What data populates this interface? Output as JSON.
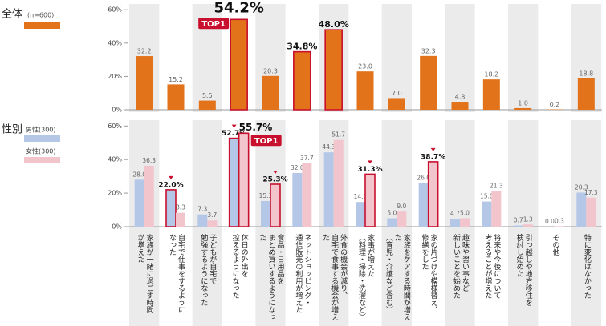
{
  "chart_data": [
    {
      "type": "bar",
      "title": "全体",
      "subtitle": "(n=600)",
      "series": [
        {
          "color": "#e2731b",
          "values": [
            32.2,
            15.2,
            5.5,
            54.2,
            20.3,
            34.8,
            48.0,
            23.0,
            7.0,
            32.3,
            4.8,
            18.2,
            1.0,
            0.2,
            18.8
          ],
          "value_labels": [
            "32.2",
            "15.2",
            "5.5",
            "54.2%",
            "20.3",
            "34.8%",
            "48.0%",
            "23.0",
            "7.0",
            "32.3",
            "4.8",
            "18.2",
            "1.0",
            "0.2",
            "18.8"
          ],
          "highlight": [
            3,
            5,
            6
          ],
          "top": 3,
          "top_label": "TOP1"
        }
      ],
      "ylim": [
        0,
        63
      ],
      "yticks": [
        {
          "value": 0,
          "label": "0%"
        },
        {
          "value": 20,
          "label": "20%"
        },
        {
          "value": 40,
          "label": "40%"
        },
        {
          "value": 60,
          "label": "60%"
        }
      ]
    },
    {
      "type": "bar",
      "title": "性別",
      "categories": [
        "家族が一緒に過ごす時間\nが増えた",
        "自宅で仕事をするように\nなった",
        "子どもが自宅で\n勉強するようになった",
        "休日の外出を\n控えるようになった",
        "食品・日用品を\nまとめ買いするようになった",
        "ネットショッピング・\n通信販売の利用が増えた",
        "外食の機会が減り、\n自宅で食事する機会が増えた",
        "家事が増えた\n（料理・掃除・洗濯など）",
        "家族をケアする時間が増えた\n（育児・介護など含む）",
        "家の片づけや模様替え、\n修繕をした",
        "趣味や習い事など\n新しいことを始めた",
        "将来や今後について\n考えることが増えた",
        "引っ越しや地方移住を\n検討し始めた",
        "その他",
        "特に変化はなかった"
      ],
      "series": [
        {
          "name": "男性(300)",
          "color": "#b4c7e7",
          "values": [
            28.0,
            22.0,
            7.3,
            52.7,
            15.3,
            32.0,
            44.3,
            14.7,
            5.0,
            26.0,
            4.7,
            15.0,
            0.7,
            0.0,
            20.3
          ],
          "value_labels": [
            "28.0",
            "22.0%",
            "7.3",
            "52.7%",
            "15.3",
            "32.0",
            "44.3",
            "14.7",
            "5.0",
            "26.0",
            "4.7",
            "15.0",
            "0.7",
            "0.0",
            "20.3"
          ],
          "highlight": [
            1,
            3
          ]
        },
        {
          "name": "女性(300)",
          "color": "#f2c4cc",
          "values": [
            36.3,
            8.3,
            3.7,
            55.7,
            25.3,
            37.7,
            51.7,
            31.3,
            9.0,
            38.7,
            5.0,
            21.3,
            1.3,
            0.3,
            17.3
          ],
          "value_labels": [
            "36.3",
            "8.3",
            "3.7",
            "55.7%",
            "25.3%",
            "37.7",
            "51.7",
            "31.3%",
            "9.0",
            "38.7%",
            "5.0",
            "21.3",
            "1.3",
            "0.3",
            "17.3"
          ],
          "highlight": [
            3,
            4,
            7,
            9
          ],
          "top": 3,
          "top_label": "TOP1"
        }
      ],
      "ylim": [
        0,
        63
      ],
      "yticks": [
        {
          "value": 0,
          "label": "0%"
        },
        {
          "value": 20,
          "label": "20%"
        },
        {
          "value": 40,
          "label": "40%"
        },
        {
          "value": 60,
          "label": "60%"
        }
      ]
    }
  ]
}
